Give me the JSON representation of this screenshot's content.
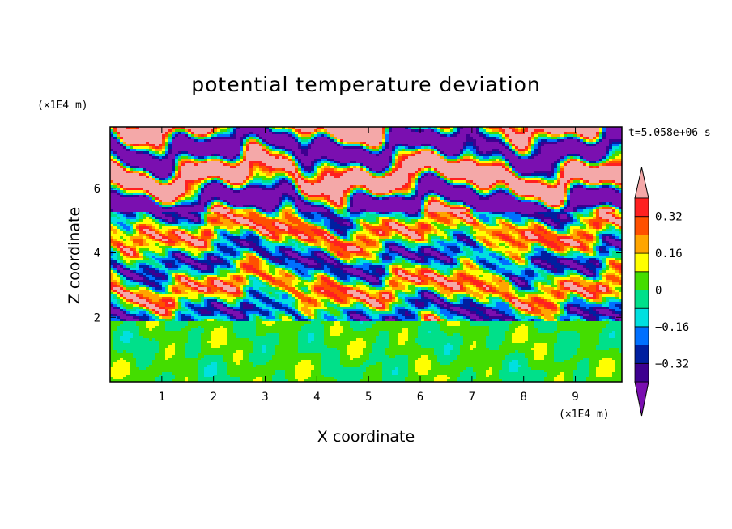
{
  "chart_data": {
    "type": "heatmap",
    "title": "potential temperature deviation",
    "xlabel": "X coordinate",
    "ylabel": "Z coordinate",
    "x_units": "(×1E4 m)",
    "y_units": "(×1E4 m)",
    "time_label": "t=5.058e+06 s",
    "xlim": [
      0,
      9.9
    ],
    "ylim": [
      0,
      7.9
    ],
    "x_ticks": [
      1,
      2,
      3,
      4,
      5,
      6,
      7,
      8,
      9
    ],
    "y_ticks": [
      2,
      4,
      6
    ],
    "colorbar": {
      "levels": [
        -0.4,
        -0.32,
        -0.24,
        -0.16,
        -0.08,
        0,
        0.08,
        0.16,
        0.24,
        0.32,
        0.4
      ],
      "tick_labels": [
        "0.32",
        "0.16",
        "0",
        "−0.16",
        "−0.32"
      ],
      "colors": [
        "#7a0fb0",
        "#3d0090",
        "#001fa0",
        "#0070ff",
        "#00e0e0",
        "#00e08a",
        "#44dd00",
        "#ffff00",
        "#ffa500",
        "#ff5000",
        "#ff2020",
        "#f4a8a8"
      ],
      "extend": "both"
    },
    "regions": [
      {
        "z": [
          0,
          1.9
        ],
        "dominant": "green / light-green (-0.08 to 0.08) with scattered yellow and blue eddies"
      },
      {
        "z": [
          1.9,
          5.3
        ],
        "dominant": "turbulent layer: banded mix of purple (<-0.4) and pink (>0.4) with multicolor transition zones"
      },
      {
        "z": [
          5.3,
          7.9
        ],
        "dominant": "alternating horizontal bands of pink (>0.4) and purple (<-0.4)"
      }
    ]
  }
}
